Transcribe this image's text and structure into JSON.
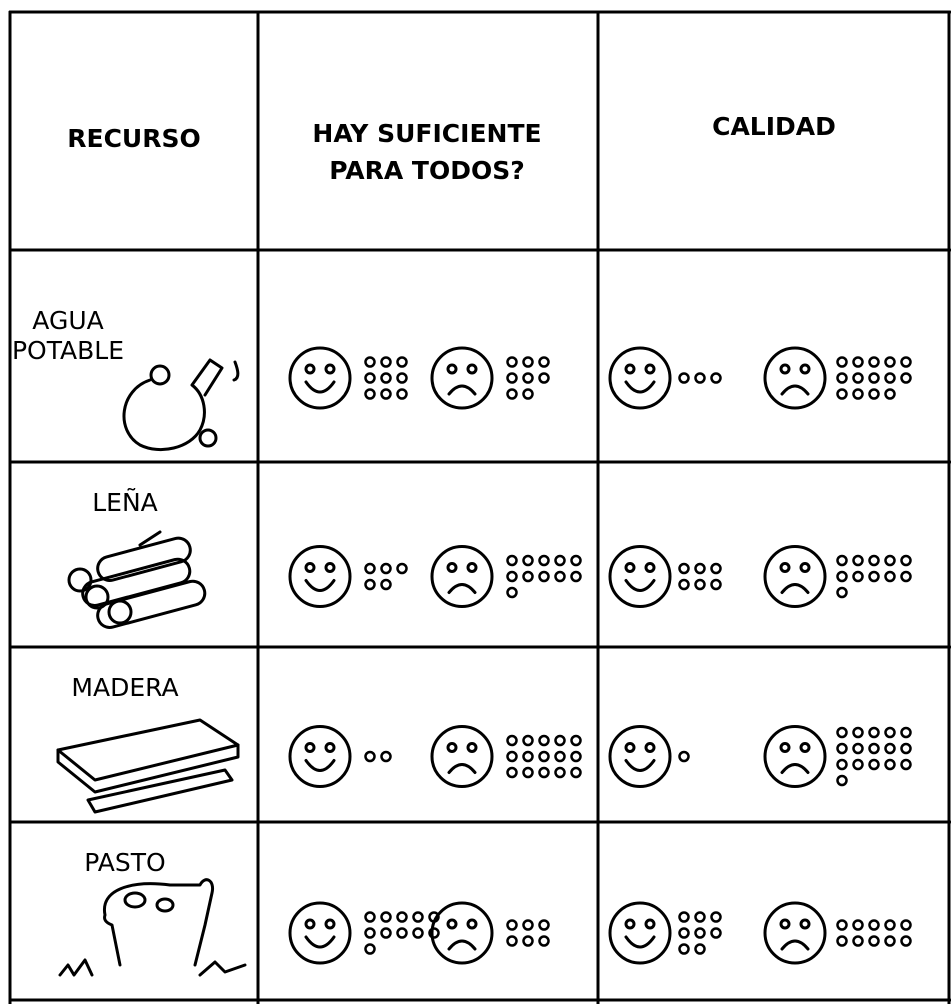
{
  "header": {
    "resource": "RECURSO",
    "enough": [
      "HAY SUFICIENTE",
      "PARA TODOS?"
    ],
    "quality": "CALIDAD"
  },
  "rows": [
    {
      "label": [
        "AGUA",
        "POTABLE"
      ],
      "enough": {
        "happy": 9,
        "sad": 8
      },
      "quality": {
        "happy": 3,
        "sad": 14
      }
    },
    {
      "label": [
        "LEÑA"
      ],
      "enough": {
        "happy": 5,
        "sad": 11
      },
      "quality": {
        "happy": 6,
        "sad": 11
      }
    },
    {
      "label": [
        "MADERA"
      ],
      "enough": {
        "happy": 2,
        "sad": 15
      },
      "quality": {
        "happy": 1,
        "sad": 16
      }
    },
    {
      "label": [
        "PASTO"
      ],
      "enough": {
        "happy": 11,
        "sad": 6
      },
      "quality": {
        "happy": 8,
        "sad": 10
      }
    }
  ]
}
